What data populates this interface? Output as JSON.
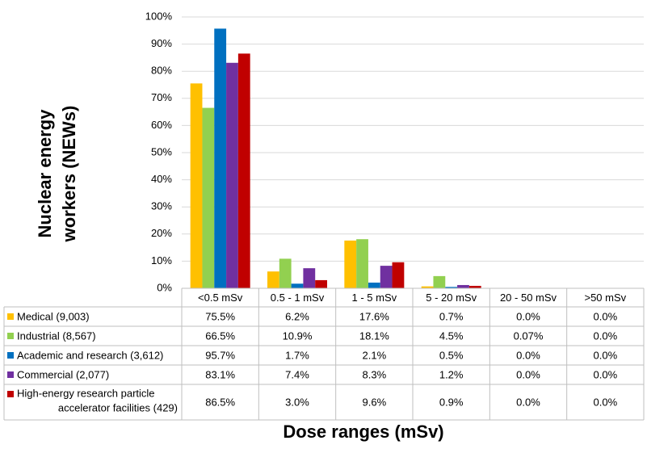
{
  "chart_data": {
    "type": "bar",
    "title": "",
    "ylabel_lines": [
      "Nuclear energy",
      "workers (NEWs)"
    ],
    "xlabel": "Dose ranges (mSv)",
    "y_ticks": [
      "0%",
      "10%",
      "20%",
      "30%",
      "40%",
      "50%",
      "60%",
      "70%",
      "80%",
      "90%",
      "100%"
    ],
    "ylim": [
      0,
      100
    ],
    "grid": true,
    "legend": "data-table",
    "categories": [
      "<0.5 mSv",
      "0.5 - 1 mSv",
      "1 - 5 mSv",
      "5 - 20 mSv",
      "20 - 50 mSv",
      ">50 mSv"
    ],
    "series": [
      {
        "name_lines": [
          "Medical (9,003)"
        ],
        "color": "#FFC000",
        "values": [
          75.5,
          6.2,
          17.6,
          0.7,
          0.0,
          0.0
        ],
        "labels": [
          "75.5%",
          "6.2%",
          "17.6%",
          "0.7%",
          "0.0%",
          "0.0%"
        ]
      },
      {
        "name_lines": [
          "Industrial (8,567)"
        ],
        "color": "#92D050",
        "values": [
          66.5,
          10.9,
          18.1,
          4.5,
          0.07,
          0.0
        ],
        "labels": [
          "66.5%",
          "10.9%",
          "18.1%",
          "4.5%",
          "0.07%",
          "0.0%"
        ]
      },
      {
        "name_lines": [
          "Academic and research (3,612)"
        ],
        "color": "#0070C0",
        "values": [
          95.7,
          1.7,
          2.1,
          0.5,
          0.0,
          0.0
        ],
        "labels": [
          "95.7%",
          "1.7%",
          "2.1%",
          "0.5%",
          "0.0%",
          "0.0%"
        ]
      },
      {
        "name_lines": [
          "Commercial (2,077)"
        ],
        "color": "#7030A0",
        "values": [
          83.1,
          7.4,
          8.3,
          1.2,
          0.0,
          0.0
        ],
        "labels": [
          "83.1%",
          "7.4%",
          "8.3%",
          "1.2%",
          "0.0%",
          "0.0%"
        ]
      },
      {
        "name_lines": [
          "High-energy research particle",
          "accelerator facilities (429)"
        ],
        "color": "#C00000",
        "values": [
          86.5,
          3.0,
          9.6,
          0.9,
          0.0,
          0.0
        ],
        "labels": [
          "86.5%",
          "3.0%",
          "9.6%",
          "0.9%",
          "0.0%",
          "0.0%"
        ]
      }
    ]
  }
}
